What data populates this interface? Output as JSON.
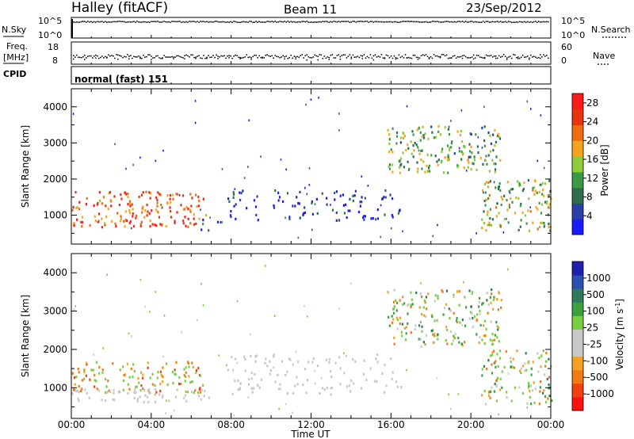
{
  "header": {
    "station": "Halley (fitACF)",
    "beam": "Beam 11",
    "date": "23/Sep/2012"
  },
  "top_panels": {
    "nsky_label": "N.Sky",
    "nsearch_label": "N.Search",
    "count_ticks": [
      "10^5",
      "10^0"
    ],
    "freq_label_line1": "Freq.",
    "freq_label_line2": "[MHz]",
    "freq_ticks": [
      "18",
      "8"
    ],
    "nave_label": "Nave",
    "nave_ticks": [
      "60",
      "0"
    ],
    "cpid_label": "CPID",
    "cpid_text": "normal (fast) 151"
  },
  "colors": {
    "power_scale": [
      "#1a1aff",
      "#2b3fa8",
      "#2e6e4e",
      "#3a9a45",
      "#8fcc3c",
      "#f4a51c",
      "#f06a10",
      "#e8340f",
      "#ff1a1a"
    ],
    "velocity_scale": [
      "#ff1010",
      "#f24010",
      "#f27a10",
      "#f5a020",
      "#c8c8c8",
      "#c8c8c8",
      "#78d040",
      "#3aa040",
      "#2f7a5a",
      "#2a50b0",
      "#1f1fb0"
    ],
    "ground_scatter": "#c8c8c8"
  },
  "chart_data": [
    {
      "type": "heatmap",
      "title": "Power",
      "xlabel": "Time UT",
      "ylabel": "Slant Range [km]",
      "x_tick_labels": [
        "00:00",
        "04:00",
        "08:00",
        "12:00",
        "16:00",
        "20:00",
        "00:00"
      ],
      "xlim_hours": [
        0,
        24
      ],
      "ylim_km": [
        200,
        4500
      ],
      "y_ticks": [
        1000,
        2000,
        3000,
        4000
      ],
      "colorbar_label": "Power [dB]",
      "colorbar_ticks": [
        4,
        8,
        12,
        16,
        20,
        24,
        28
      ],
      "colorbar_range": [
        0,
        30
      ],
      "regions": [
        {
          "t0": 0.0,
          "t1": 6.6,
          "r0": 700,
          "r1": 1700,
          "level": 0.78
        },
        {
          "t0": 6.4,
          "t1": 7.6,
          "r0": 600,
          "r1": 1050,
          "level": 0.25
        },
        {
          "t0": 7.8,
          "t1": 16.5,
          "r0": 880,
          "r1": 1720,
          "level": 0.1
        },
        {
          "t0": 15.8,
          "t1": 21.5,
          "r0": 2200,
          "r1": 3500,
          "level": 0.42
        },
        {
          "t0": 20.5,
          "t1": 24.0,
          "r0": 600,
          "r1": 2000,
          "level": 0.48
        }
      ]
    },
    {
      "type": "heatmap",
      "title": "Velocity",
      "xlabel": "Time UT",
      "ylabel": "Slant Range [km]",
      "x_tick_labels": [
        "00:00",
        "04:00",
        "08:00",
        "12:00",
        "16:00",
        "20:00",
        "00:00"
      ],
      "xlim_hours": [
        0,
        24
      ],
      "ylim_km": [
        200,
        4500
      ],
      "y_ticks": [
        1000,
        2000,
        3000,
        4000
      ],
      "colorbar_label": "Velocity [m s^-1]",
      "colorbar_ticks": [
        1000,
        500,
        100,
        25,
        -25,
        -100,
        -500,
        -1000
      ],
      "regions": [
        {
          "t0": 0.0,
          "t1": 6.6,
          "r0": 900,
          "r1": 1700,
          "kind": "negative"
        },
        {
          "t0": 0.0,
          "t1": 7.0,
          "r0": 650,
          "r1": 1000,
          "kind": "ground"
        },
        {
          "t0": 7.5,
          "t1": 16.5,
          "r0": 850,
          "r1": 1900,
          "kind": "ground"
        },
        {
          "t0": 15.8,
          "t1": 21.5,
          "r0": 2100,
          "r1": 3600,
          "kind": "mixed"
        },
        {
          "t0": 20.5,
          "t1": 24.0,
          "r0": 600,
          "r1": 2000,
          "kind": "mixed"
        }
      ]
    }
  ]
}
